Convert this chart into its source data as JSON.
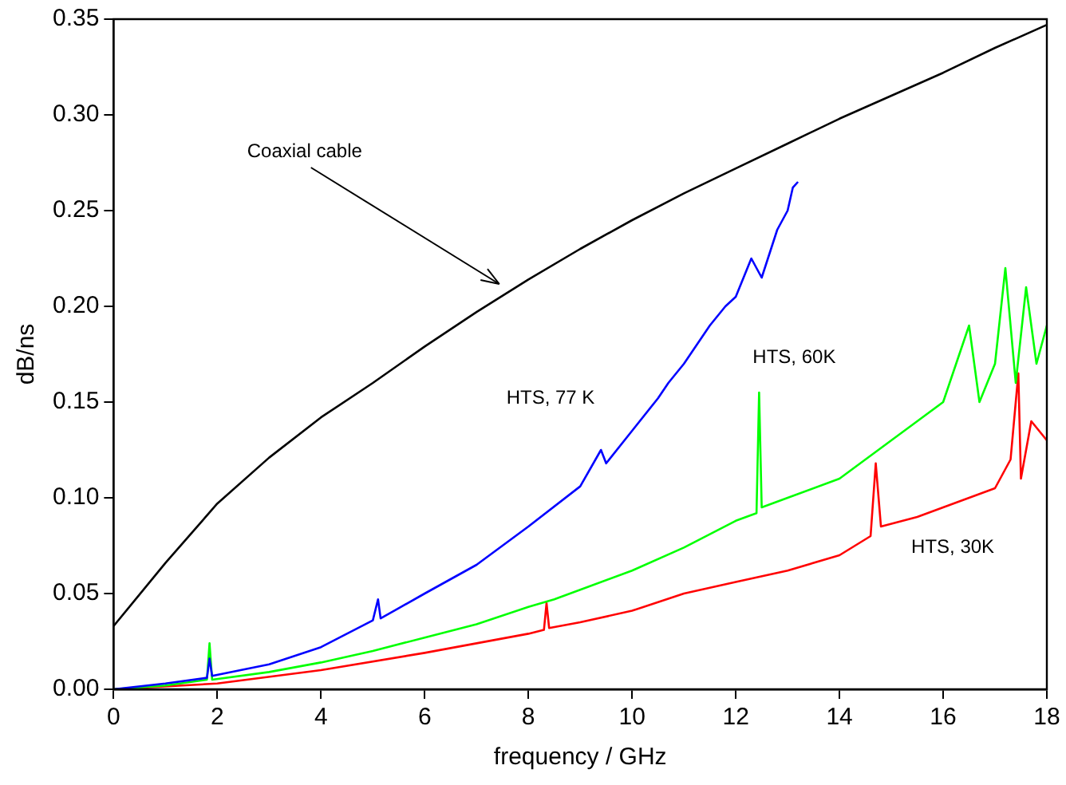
{
  "chart_data": {
    "type": "line",
    "xlabel": "frequency / GHz",
    "ylabel": "dB/ns",
    "xlim": [
      0,
      18
    ],
    "xticks": [
      0,
      2,
      4,
      6,
      8,
      10,
      12,
      14,
      16,
      18
    ],
    "ylim": [
      0,
      0.35
    ],
    "yticks": [
      {
        "value": 0,
        "label": "0.00"
      },
      {
        "value": 0.05,
        "label": "0.05"
      },
      {
        "value": 0.1,
        "label": "0.10"
      },
      {
        "value": 0.15,
        "label": "0.15"
      },
      {
        "value": 0.2,
        "label": "0.20"
      },
      {
        "value": 0.25,
        "label": "0.25"
      },
      {
        "value": 0.3,
        "label": "0.30"
      },
      {
        "value": 0.35,
        "label": "0.35"
      }
    ],
    "grid": false,
    "legend": false,
    "marker": "none",
    "line_style": "solid",
    "annotations": [
      {
        "text": "Coaxial cable",
        "x": 7.5,
        "y": 0.21
      }
    ],
    "series": [
      {
        "name": null,
        "color": "#000000",
        "x": [
          0,
          1,
          2,
          3,
          4,
          5,
          6,
          7,
          8,
          9,
          10,
          11,
          12,
          13,
          14,
          15,
          16,
          17,
          18
        ],
        "values": [
          0.033,
          0.066,
          0.097,
          0.121,
          0.142,
          0.16,
          0.179,
          0.197,
          0.214,
          0.23,
          0.245,
          0.259,
          0.272,
          0.285,
          0.298,
          0.31,
          0.322,
          0.335,
          0.347
        ]
      },
      {
        "name": "HTS, 77 K",
        "color": "#0000ff",
        "x": [
          0,
          1,
          1.8,
          1.85,
          1.9,
          3,
          4,
          5,
          5.1,
          5.15,
          6,
          7,
          8,
          9,
          9.4,
          9.5,
          10,
          10.5,
          10.7,
          11,
          11.5,
          11.8,
          12,
          12.3,
          12.5,
          12.8,
          13,
          13.1,
          13.2
        ],
        "values": [
          0,
          0.003,
          0.006,
          0.016,
          0.007,
          0.013,
          0.022,
          0.036,
          0.047,
          0.037,
          0.05,
          0.065,
          0.085,
          0.106,
          0.125,
          0.118,
          0.135,
          0.152,
          0.16,
          0.17,
          0.19,
          0.2,
          0.205,
          0.225,
          0.215,
          0.24,
          0.25,
          0.262,
          0.265
        ]
      },
      {
        "name": "HTS, 60K",
        "color": "#00ff00",
        "x": [
          0,
          1,
          1.8,
          1.85,
          1.9,
          3,
          4,
          5,
          6,
          7,
          8,
          8.5,
          9,
          10,
          11,
          12,
          12.4,
          12.45,
          12.5,
          13,
          14,
          15,
          15.5,
          16,
          16.5,
          16.7,
          17,
          17.2,
          17.4,
          17.6,
          17.8,
          18
        ],
        "values": [
          0,
          0.002,
          0.005,
          0.024,
          0.005,
          0.009,
          0.014,
          0.02,
          0.027,
          0.034,
          0.043,
          0.047,
          0.052,
          0.062,
          0.074,
          0.088,
          0.092,
          0.155,
          0.095,
          0.1,
          0.11,
          0.13,
          0.14,
          0.15,
          0.19,
          0.15,
          0.17,
          0.22,
          0.16,
          0.21,
          0.17,
          0.19
        ]
      },
      {
        "name": "HTS, 30K",
        "color": "#ff0000",
        "x": [
          0,
          2,
          4,
          6,
          8,
          8.3,
          8.35,
          8.4,
          9,
          10,
          11,
          12,
          13,
          14,
          14.6,
          14.7,
          14.8,
          15.5,
          16,
          16.5,
          17,
          17.3,
          17.45,
          17.5,
          17.7,
          18
        ],
        "values": [
          0,
          0.003,
          0.01,
          0.019,
          0.029,
          0.031,
          0.045,
          0.032,
          0.035,
          0.041,
          0.05,
          0.056,
          0.062,
          0.07,
          0.08,
          0.118,
          0.085,
          0.09,
          0.095,
          0.1,
          0.105,
          0.12,
          0.165,
          0.11,
          0.14,
          0.13
        ]
      }
    ]
  }
}
